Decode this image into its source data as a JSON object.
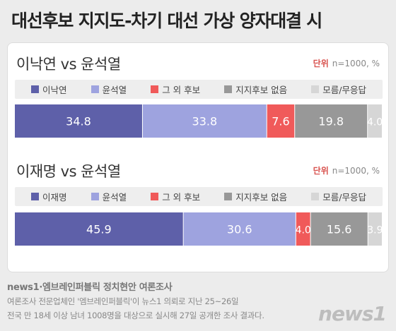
{
  "header": {
    "title": "대선후보 지지도-차기 대선 가상 양자대결 시"
  },
  "unit": {
    "label": "단위",
    "value": "n=1000, %"
  },
  "chart_data": [
    {
      "type": "bar",
      "stacked": true,
      "orientation": "horizontal",
      "title": "이낙연 vs 윤석열",
      "x_range": [
        0,
        100
      ],
      "series": [
        {
          "name": "이낙연",
          "value": 34.8,
          "color": "#5e60a9"
        },
        {
          "name": "윤석열",
          "value": 33.8,
          "color": "#9ea3df"
        },
        {
          "name": "그 외 후보",
          "value": 7.6,
          "color": "#f05a5a"
        },
        {
          "name": "지지후보 없음",
          "value": 19.8,
          "color": "#989898"
        },
        {
          "name": "모름/무응답",
          "value": 4.0,
          "color": "#d6d6d6"
        }
      ],
      "labels": [
        "34.8",
        "33.8",
        "7.6",
        "19.8",
        "4.0"
      ]
    },
    {
      "type": "bar",
      "stacked": true,
      "orientation": "horizontal",
      "title": "이재명 vs 윤석열",
      "x_range": [
        0,
        100
      ],
      "series": [
        {
          "name": "이재명",
          "value": 45.9,
          "color": "#5e60a9"
        },
        {
          "name": "윤석열",
          "value": 30.6,
          "color": "#9ea3df"
        },
        {
          "name": "그 외 후보",
          "value": 4.0,
          "color": "#f05a5a"
        },
        {
          "name": "지지후보 없음",
          "value": 15.6,
          "color": "#989898"
        },
        {
          "name": "모름/무응답",
          "value": 3.9,
          "color": "#d6d6d6"
        }
      ],
      "labels": [
        "45.9",
        "30.6",
        "4.0",
        "15.6",
        "3.9"
      ]
    }
  ],
  "footer": {
    "source_title": "news1·엠브레인퍼블릭 정치현안 여론조사",
    "line1": "여론조사 전문업체인 '엠브레인퍼블릭'이 뉴스1 의뢰로 지난 25~26일",
    "line2": "전국 만 18세 이상 남녀 1008명을 대상으로 실시해 27일 공개한 조사 결과다.",
    "logo": "news1"
  }
}
